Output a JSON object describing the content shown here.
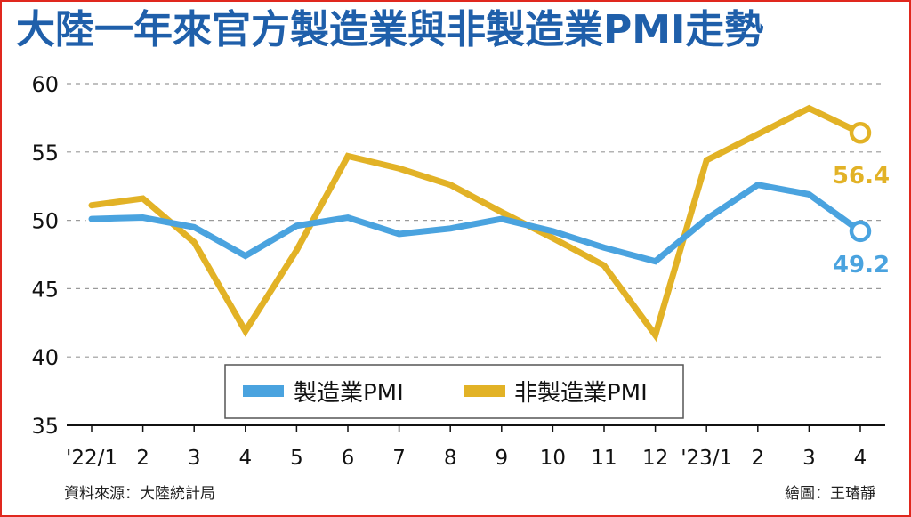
{
  "title": "大陸一年來官方製造業與非製造業PMI走勢",
  "source_text": "資料來源：大陸統計局",
  "credit_text": "繪圖：王璿靜",
  "colors": {
    "manufacturing": "#4aa3df",
    "non_manufacturing": "#e2b226",
    "title": "#1f5faa",
    "frame": "#e0281e",
    "grid": "#9a9a9a"
  },
  "chart_data": {
    "type": "line",
    "x_labels": [
      "'22/1",
      "2",
      "3",
      "4",
      "5",
      "6",
      "7",
      "8",
      "9",
      "10",
      "11",
      "12",
      "'23/1",
      "2",
      "3",
      "4"
    ],
    "y_ticks": [
      35,
      40,
      45,
      50,
      55,
      60
    ],
    "ylim": [
      35,
      60
    ],
    "grid": "horizontal-dashed",
    "legend_position": "bottom-center",
    "series": [
      {
        "name": "製造業PMI",
        "color": "#4aa3df",
        "values": [
          50.1,
          50.2,
          49.5,
          47.4,
          49.6,
          50.2,
          49.0,
          49.4,
          50.1,
          49.2,
          48.0,
          47.0,
          50.1,
          52.6,
          51.9,
          49.2
        ],
        "end_label": "49.2"
      },
      {
        "name": "非製造業PMI",
        "color": "#e2b226",
        "values": [
          51.1,
          51.6,
          48.4,
          41.9,
          47.8,
          54.7,
          53.8,
          52.6,
          50.6,
          48.7,
          46.7,
          41.6,
          54.4,
          56.3,
          58.2,
          56.4
        ],
        "end_label": "56.4"
      }
    ]
  }
}
